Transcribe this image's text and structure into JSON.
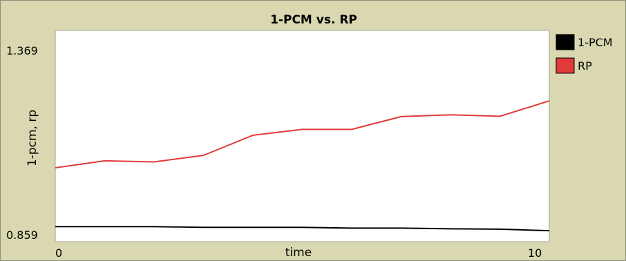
{
  "chart_data": {
    "type": "line",
    "title": "1-PCM vs. RP",
    "xlabel": "time",
    "ylabel": "1-pcm, rp",
    "xlim": [
      0,
      10
    ],
    "ylim": [
      0.859,
      1.369
    ],
    "x_ticks": [
      "0",
      "10"
    ],
    "y_ticks": [
      "0.859",
      "1.369"
    ],
    "legend_position": "right",
    "grid": false,
    "series": [
      {
        "name": "1-PCM",
        "color": "#000000",
        "x": [
          0,
          1,
          2,
          3,
          4,
          5,
          6,
          7,
          8,
          9,
          10
        ],
        "y": [
          0.885,
          0.885,
          0.885,
          0.883,
          0.883,
          0.883,
          0.881,
          0.881,
          0.879,
          0.878,
          0.874
        ]
      },
      {
        "name": "RP",
        "color": "#e03a3a",
        "x": [
          0,
          1,
          2,
          3,
          4,
          5,
          6,
          7,
          8,
          9,
          10
        ],
        "y": [
          1.046,
          1.065,
          1.062,
          1.08,
          1.135,
          1.151,
          1.151,
          1.186,
          1.191,
          1.187,
          1.229
        ]
      }
    ]
  }
}
